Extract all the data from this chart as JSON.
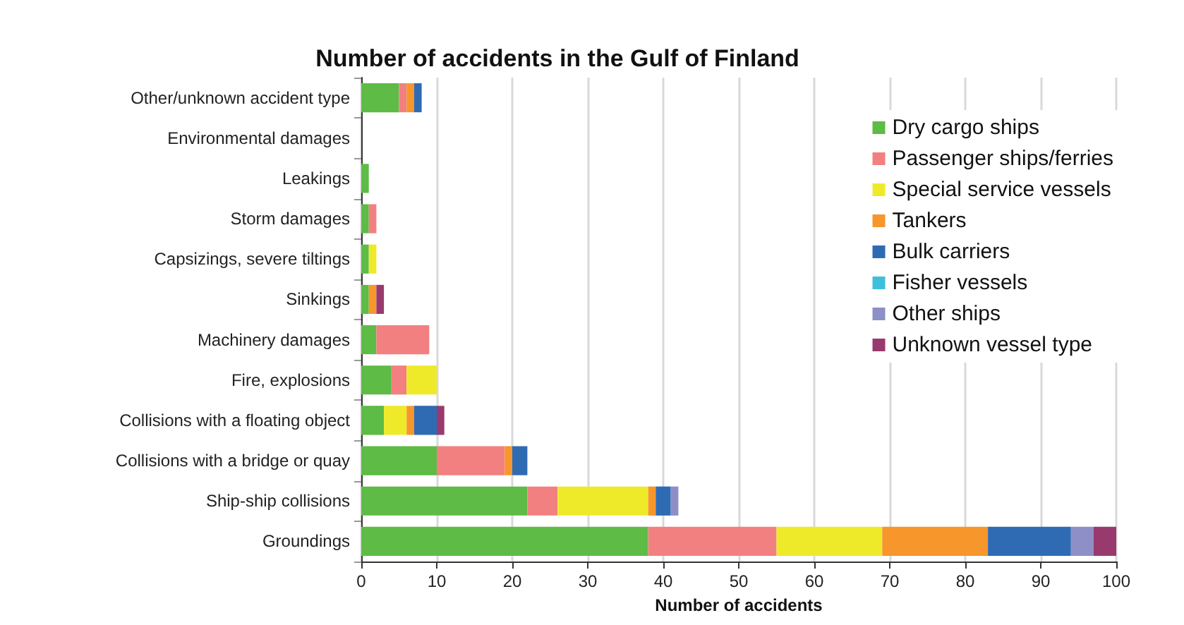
{
  "chart_data": {
    "type": "bar",
    "orientation": "horizontal",
    "stacked": true,
    "title": "Number of accidents in the Gulf of Finland",
    "xlabel": "Number of accidents",
    "categories": [
      "Other/unknown accident type",
      "Environmental damages",
      "Leakings",
      "Storm damages",
      "Capsizings, severe tiltings",
      "Sinkings",
      "Machinery damages",
      "Fire, explosions",
      "Collisions with a floating object",
      "Collisions with a bridge or quay",
      "Ship-ship collisions",
      "Groundings"
    ],
    "series": [
      {
        "name": "Dry cargo ships",
        "color": "#5dbb46",
        "values": [
          5,
          0,
          1,
          1,
          1,
          1,
          2,
          4,
          3,
          10,
          22,
          38
        ]
      },
      {
        "name": "Passenger ships/ferries",
        "color": "#f28080",
        "values": [
          1,
          0,
          0,
          1,
          0,
          0,
          7,
          2,
          0,
          9,
          4,
          17
        ]
      },
      {
        "name": "Special service vessels",
        "color": "#eeea2a",
        "values": [
          0,
          0,
          0,
          0,
          1,
          0,
          0,
          4,
          3,
          0,
          12,
          14
        ]
      },
      {
        "name": "Tankers",
        "color": "#f7962b",
        "values": [
          1,
          0,
          0,
          0,
          0,
          1,
          0,
          0,
          1,
          1,
          1,
          14
        ]
      },
      {
        "name": "Bulk carriers",
        "color": "#2f6bb3",
        "values": [
          1,
          0,
          0,
          0,
          0,
          0,
          0,
          0,
          3,
          2,
          2,
          11
        ]
      },
      {
        "name": "Fisher vessels",
        "color": "#3fbfdc",
        "values": [
          0,
          0,
          0,
          0,
          0,
          0,
          0,
          0,
          0,
          0,
          0,
          0
        ]
      },
      {
        "name": "Other ships",
        "color": "#8e8fc7",
        "values": [
          0,
          0,
          0,
          0,
          0,
          0,
          0,
          0,
          0,
          0,
          1,
          3
        ]
      },
      {
        "name": "Unknown vessel type",
        "color": "#983a6e",
        "values": [
          0,
          0,
          0,
          0,
          0,
          1,
          0,
          0,
          1,
          0,
          0,
          3
        ]
      }
    ],
    "xlim": [
      0,
      100
    ],
    "xticks": [
      0,
      10,
      20,
      30,
      40,
      50,
      60,
      70,
      80,
      90,
      100
    ],
    "grid": "x",
    "legend": "top right"
  }
}
